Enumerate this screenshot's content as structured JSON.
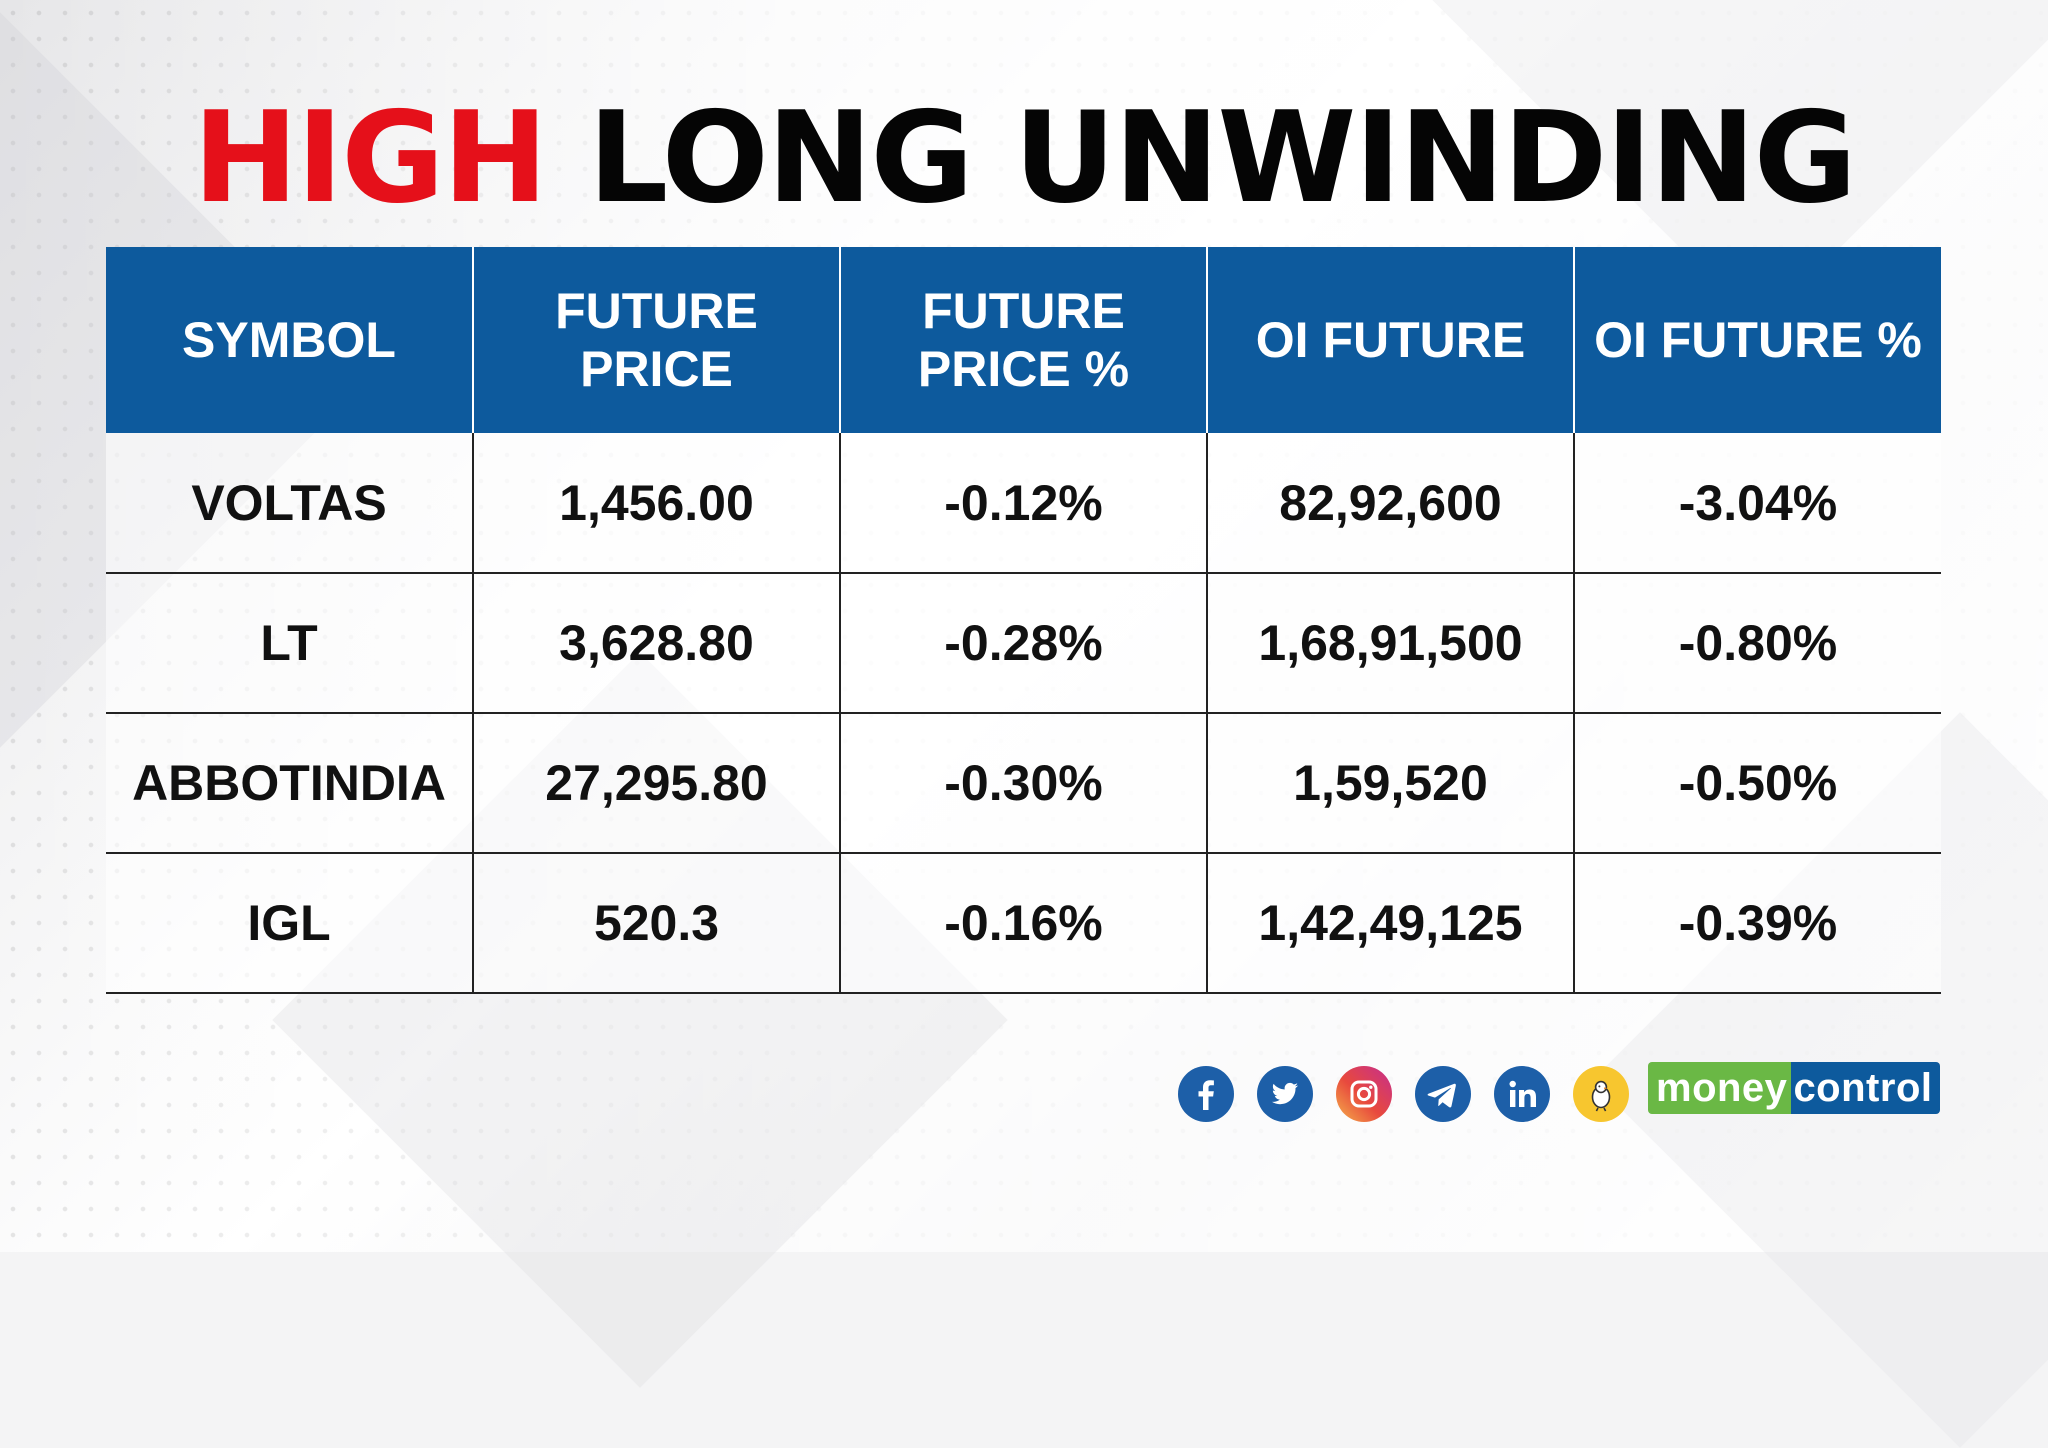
{
  "title": {
    "highlight": "HIGH",
    "rest": "LONG UNWINDING"
  },
  "chart_data": {
    "type": "table",
    "title": "HIGH LONG UNWINDING",
    "columns": [
      "SYMBOL",
      "FUTURE PRICE",
      "FUTURE PRICE %",
      "OI FUTURE",
      "OI FUTURE %"
    ],
    "rows": [
      [
        "VOLTAS",
        "1,456.00",
        "-0.12%",
        "82,92,600",
        "-3.04%"
      ],
      [
        "LT",
        "3,628.80",
        "-0.28%",
        "1,68,91,500",
        "-0.80%"
      ],
      [
        "ABBOTINDIA",
        "27,295.80",
        "-0.30%",
        "1,59,520",
        "-0.50%"
      ],
      [
        "IGL",
        "520.3",
        "-0.16%",
        "1,42,49,125",
        "-0.39%"
      ]
    ]
  },
  "social_icons": [
    "facebook-icon",
    "twitter-icon",
    "instagram-icon",
    "telegram-icon",
    "linkedin-icon",
    "koo-icon"
  ],
  "brand": {
    "part1": "money",
    "part2": "control"
  },
  "colors": {
    "title_highlight": "#e5101a",
    "header_bg": "#0d5a9d",
    "brand_green": "#6ab845",
    "brand_blue": "#0d5a9d"
  }
}
